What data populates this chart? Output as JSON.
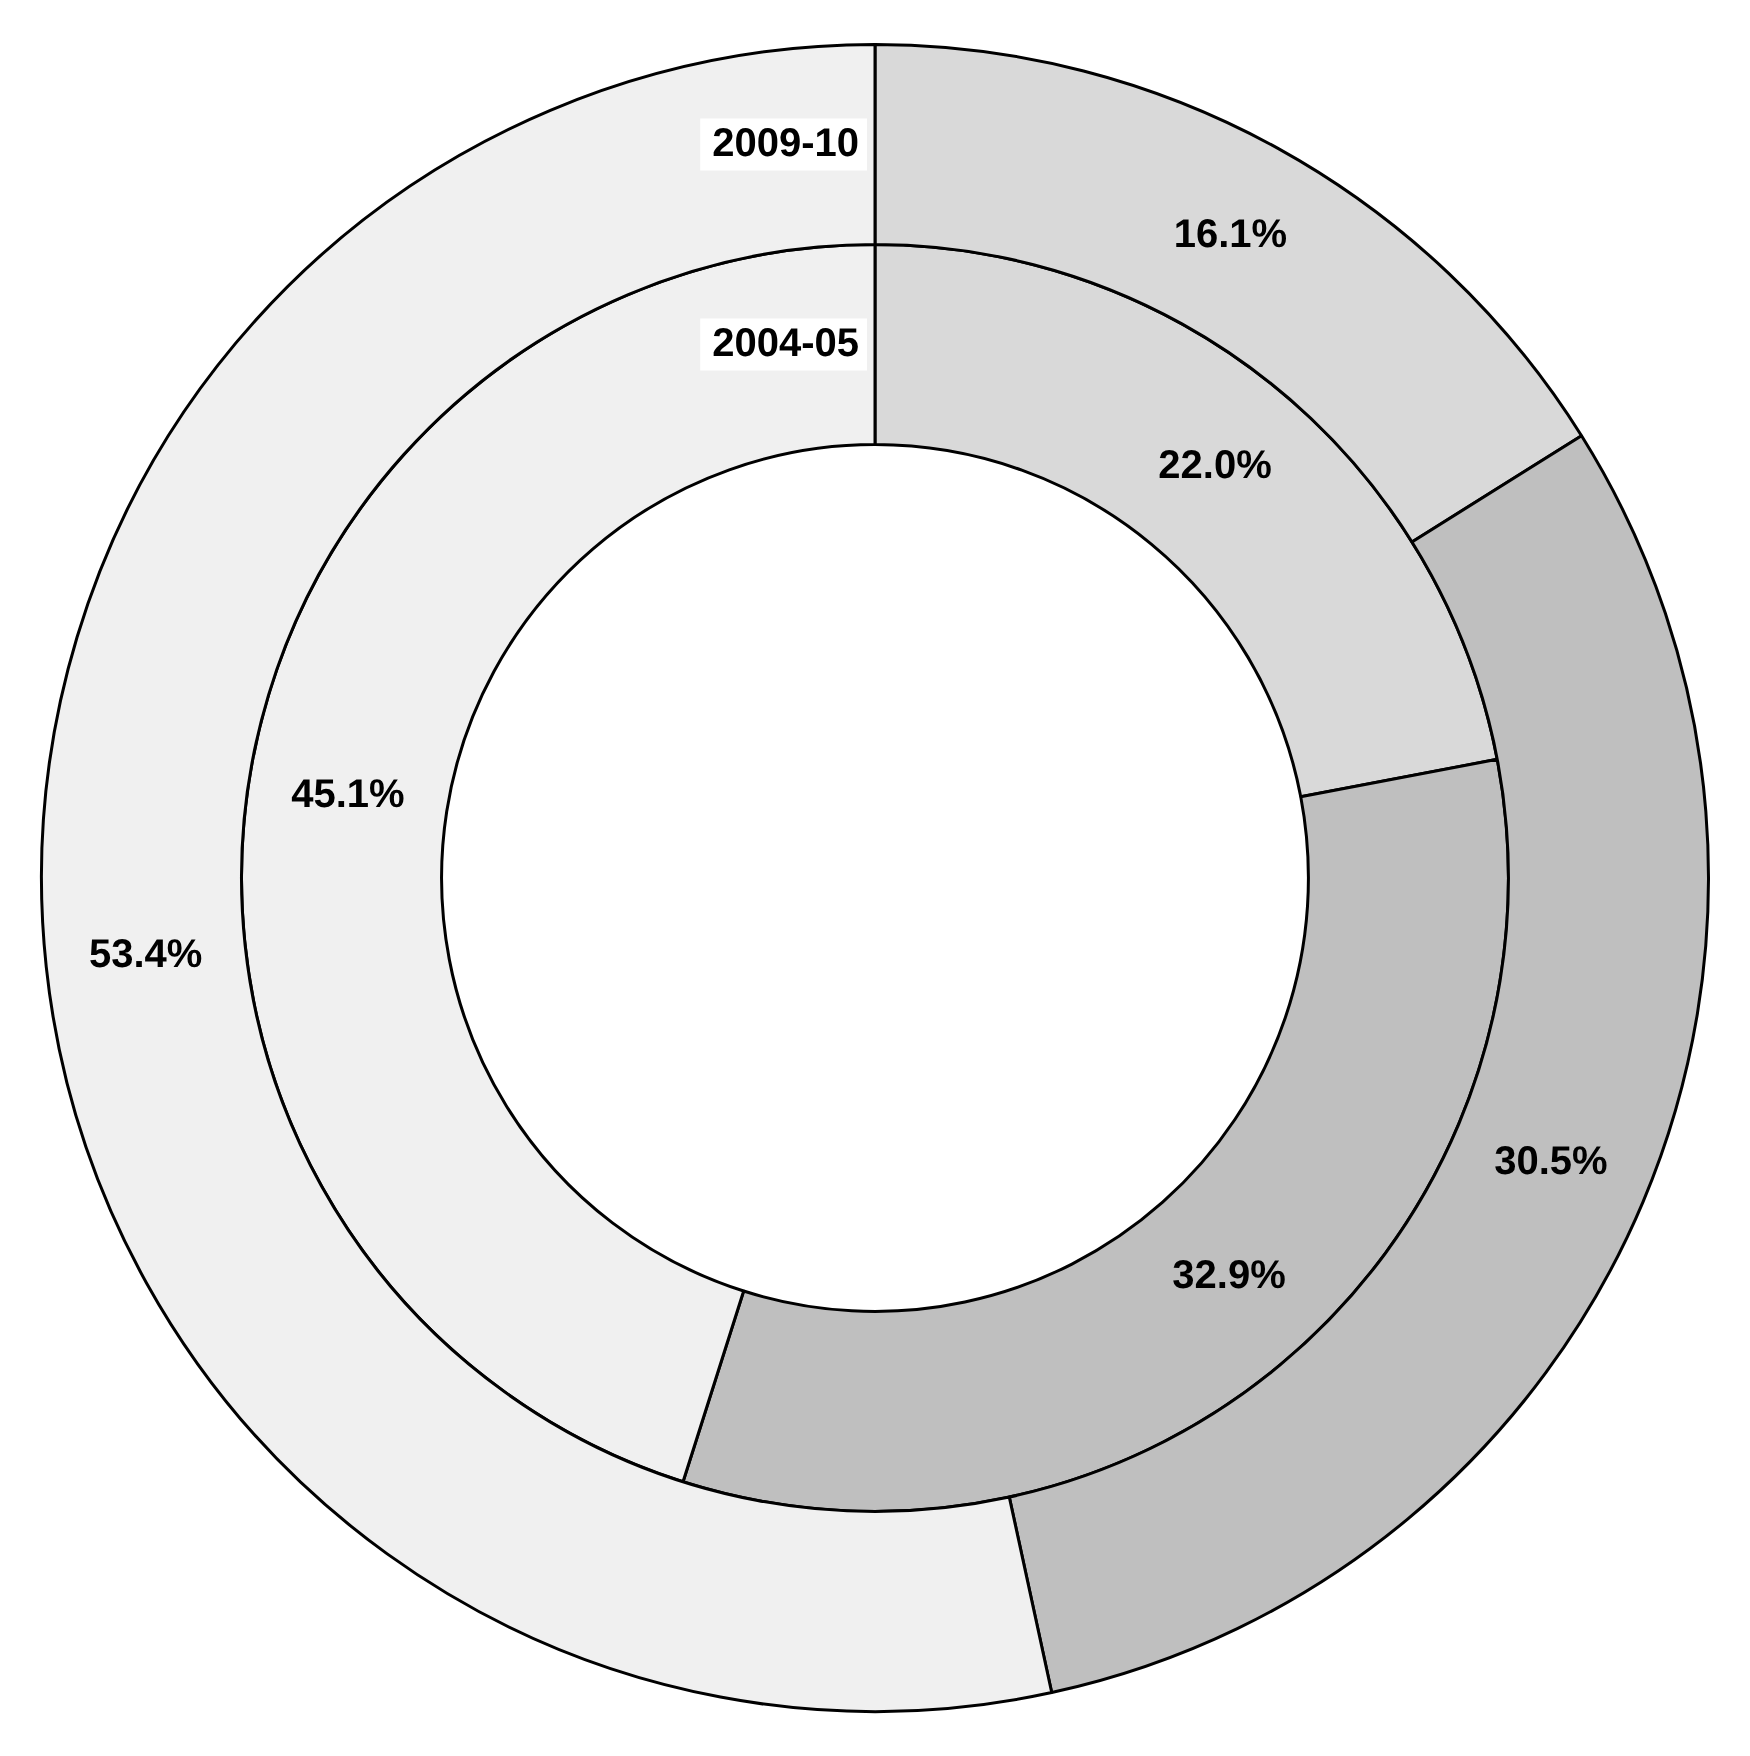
{
  "chart_data": {
    "type": "donut",
    "categories": [
      null,
      null,
      null
    ],
    "colors": [
      "#d9d9d9",
      "#bfbfbf",
      "#f0f0f0"
    ],
    "series": [
      {
        "name": "2009-10",
        "values": [
          16.1,
          30.5,
          53.4
        ],
        "value_labels": [
          "16.1%",
          "30.5%",
          "53.4%"
        ]
      },
      {
        "name": "2004-05",
        "values": [
          22.0,
          32.9,
          45.1
        ],
        "value_labels": [
          "22.0%",
          "32.9%",
          "45.1%"
        ]
      }
    ],
    "legend": false
  }
}
